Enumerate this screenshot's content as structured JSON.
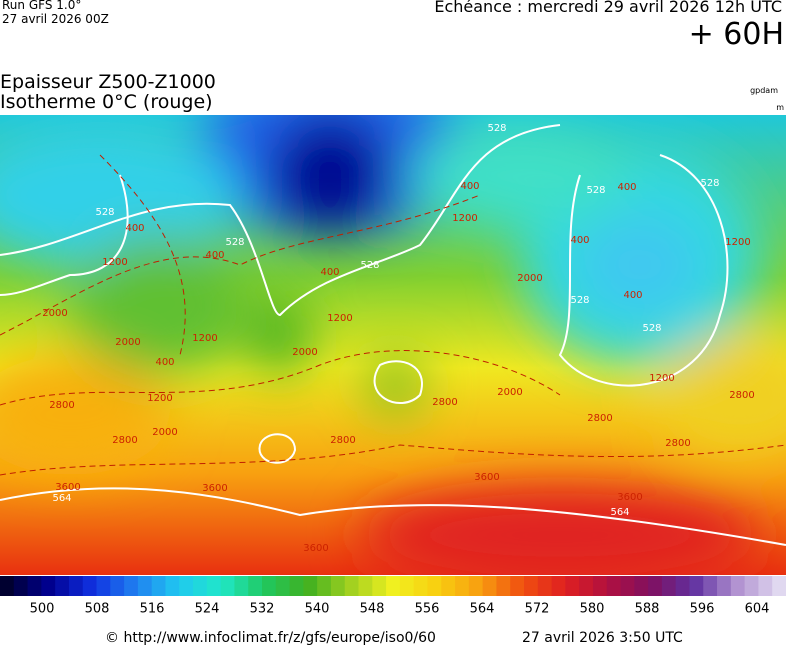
{
  "header": {
    "run": "Run GFS 1.0°",
    "run_date": "27 avril 2026 00Z",
    "valid_time": "Echéance : mercredi 29 avril 2026 12h UTC",
    "lead": "+ 60H",
    "title_1": "Epaisseur Z500-Z1000",
    "title_2": "Isotherme 0°C (rouge)",
    "unit_1": "gpdam",
    "unit_2": "m"
  },
  "map": {
    "contour_labels": [
      {
        "text": "528",
        "color": "#ffffff"
      },
      {
        "text": "528",
        "color": "#ffffff"
      },
      {
        "text": "528",
        "color": "#ffffff"
      },
      {
        "text": "528",
        "color": "#ffffff"
      },
      {
        "text": "528",
        "color": "#ffffff"
      },
      {
        "text": "528",
        "color": "#ffffff"
      },
      {
        "text": "528",
        "color": "#ffffff"
      },
      {
        "text": "528",
        "color": "#ffffff"
      },
      {
        "text": "400",
        "color": "#cc2200"
      },
      {
        "text": "400",
        "color": "#cc2200"
      },
      {
        "text": "400",
        "color": "#cc2200"
      },
      {
        "text": "400",
        "color": "#cc2200"
      },
      {
        "text": "400",
        "color": "#cc2200"
      },
      {
        "text": "400",
        "color": "#cc2200"
      },
      {
        "text": "400",
        "color": "#cc2200"
      },
      {
        "text": "400",
        "color": "#cc2200"
      },
      {
        "text": "1200",
        "color": "#cc2200"
      },
      {
        "text": "1200",
        "color": "#cc2200"
      },
      {
        "text": "1200",
        "color": "#cc2200"
      },
      {
        "text": "1200",
        "color": "#cc2200"
      },
      {
        "text": "1200",
        "color": "#cc2200"
      },
      {
        "text": "1200",
        "color": "#cc2200"
      },
      {
        "text": "1200",
        "color": "#cc2200"
      },
      {
        "text": "2000",
        "color": "#cc2200"
      },
      {
        "text": "2000",
        "color": "#cc2200"
      },
      {
        "text": "2000",
        "color": "#cc2200"
      },
      {
        "text": "2000",
        "color": "#cc2200"
      },
      {
        "text": "2000",
        "color": "#cc2200"
      },
      {
        "text": "2000",
        "color": "#cc2200"
      },
      {
        "text": "2800",
        "color": "#cc2200"
      },
      {
        "text": "2800",
        "color": "#cc2200"
      },
      {
        "text": "2800",
        "color": "#cc2200"
      },
      {
        "text": "2800",
        "color": "#cc2200"
      },
      {
        "text": "2800",
        "color": "#cc2200"
      },
      {
        "text": "2800",
        "color": "#cc2200"
      },
      {
        "text": "2800",
        "color": "#cc2200"
      },
      {
        "text": "3600",
        "color": "#cc2200"
      },
      {
        "text": "3600",
        "color": "#cc2200"
      },
      {
        "text": "3600",
        "color": "#cc2200"
      },
      {
        "text": "3600",
        "color": "#cc2200"
      },
      {
        "text": "3600",
        "color": "#cc2200"
      },
      {
        "text": "564",
        "color": "#ffffff"
      },
      {
        "text": "564",
        "color": "#ffffff"
      }
    ]
  },
  "colorbar": {
    "ticks": [
      500,
      508,
      516,
      524,
      532,
      540,
      548,
      556,
      564,
      572,
      580,
      588,
      596,
      604
    ],
    "colors": [
      "#000030",
      "#000090",
      "#1030e0",
      "#2080f0",
      "#20c8f0",
      "#20e8c8",
      "#20c860",
      "#40b020",
      "#a0d020",
      "#f0f020",
      "#f8d010",
      "#f8a010",
      "#f05010",
      "#e02020",
      "#b01040",
      "#801060",
      "#6030a0",
      "#b090d0",
      "#e0d8f0"
    ]
  },
  "footer": {
    "url": "© http://www.infoclimat.fr/z/gfs/europe/iso0/60",
    "generated": "27 avril 2026  3:50 UTC"
  }
}
